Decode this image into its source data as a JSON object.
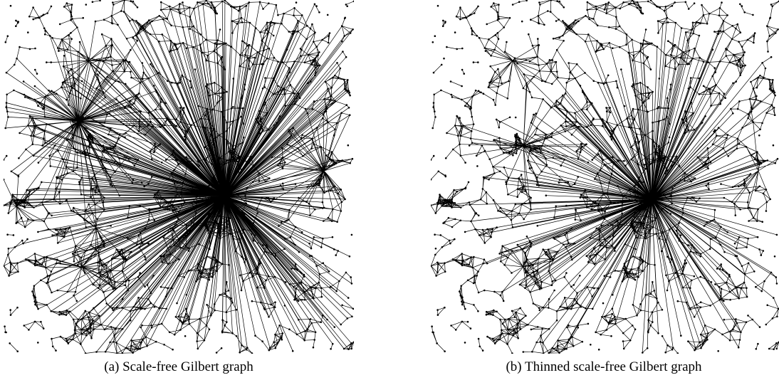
{
  "figure": {
    "subfigures": [
      {
        "caption": "(a) Scale-free Gilbert graph"
      },
      {
        "caption": "(b) Thinned scale-free Gilbert graph"
      }
    ]
  }
}
